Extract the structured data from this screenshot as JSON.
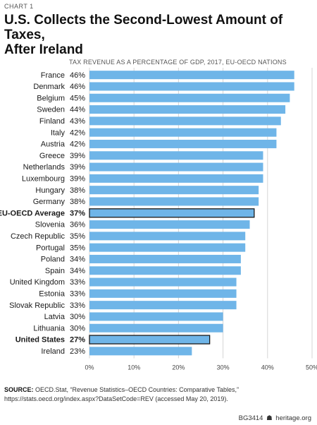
{
  "header": {
    "chart_number": "CHART 1",
    "title_line1": "U.S. Collects the Second-Lowest Amount of Taxes,",
    "title_line2": "After Ireland"
  },
  "chart_data": {
    "type": "bar",
    "orientation": "horizontal",
    "subtitle": "TAX REVENUE AS A PERCENTAGE OF GDP, 2017, EU-OECD NATIONS",
    "categories": [
      "France",
      "Denmark",
      "Belgium",
      "Sweden",
      "Finland",
      "Italy",
      "Austria",
      "Greece",
      "Netherlands",
      "Luxembourg",
      "Hungary",
      "Germany",
      "EU-OECD Average",
      "Slovenia",
      "Czech Republic",
      "Portugal",
      "Poland",
      "Spain",
      "United Kingdom",
      "Estonia",
      "Slovak Republic",
      "Latvia",
      "Lithuania",
      "United States",
      "Ireland"
    ],
    "values": [
      46.0,
      46.0,
      45.0,
      44.0,
      43.0,
      42.0,
      42.0,
      39.0,
      39.0,
      39.0,
      38.0,
      38.0,
      37.0,
      36.0,
      35.0,
      35.0,
      34.0,
      34.0,
      33.0,
      33.0,
      33.0,
      30.0,
      30.0,
      27.0,
      23.0
    ],
    "value_labels": [
      "46%",
      "46%",
      "45%",
      "44%",
      "43%",
      "42%",
      "42%",
      "39%",
      "39%",
      "39%",
      "38%",
      "38%",
      "37%",
      "36%",
      "35%",
      "35%",
      "34%",
      "34%",
      "33%",
      "33%",
      "33%",
      "30%",
      "30%",
      "27%",
      "23%"
    ],
    "highlighted": [
      "EU-OECD Average",
      "United States"
    ],
    "xlim": [
      0,
      50
    ],
    "xticks": [
      0,
      10,
      20,
      30,
      40,
      50
    ],
    "xtick_labels": [
      "0%",
      "10%",
      "20%",
      "30%",
      "40%",
      "50%"
    ],
    "grid": true,
    "colors": {
      "bar": "#6fb5e8",
      "highlight_border": "#1a1a1a",
      "grid": "#d4d4d4"
    }
  },
  "source": {
    "label": "SOURCE:",
    "text": "OECD.Stat, “Revenue Statistics–OECD Countries: Comparative Tables,” https://stats.oecd.org/index.aspx?DataSetCode=REV (accessed May 20, 2019)."
  },
  "footer": {
    "code": "BG3414",
    "icon": "heritage-bell-icon",
    "site": "heritage.org"
  }
}
